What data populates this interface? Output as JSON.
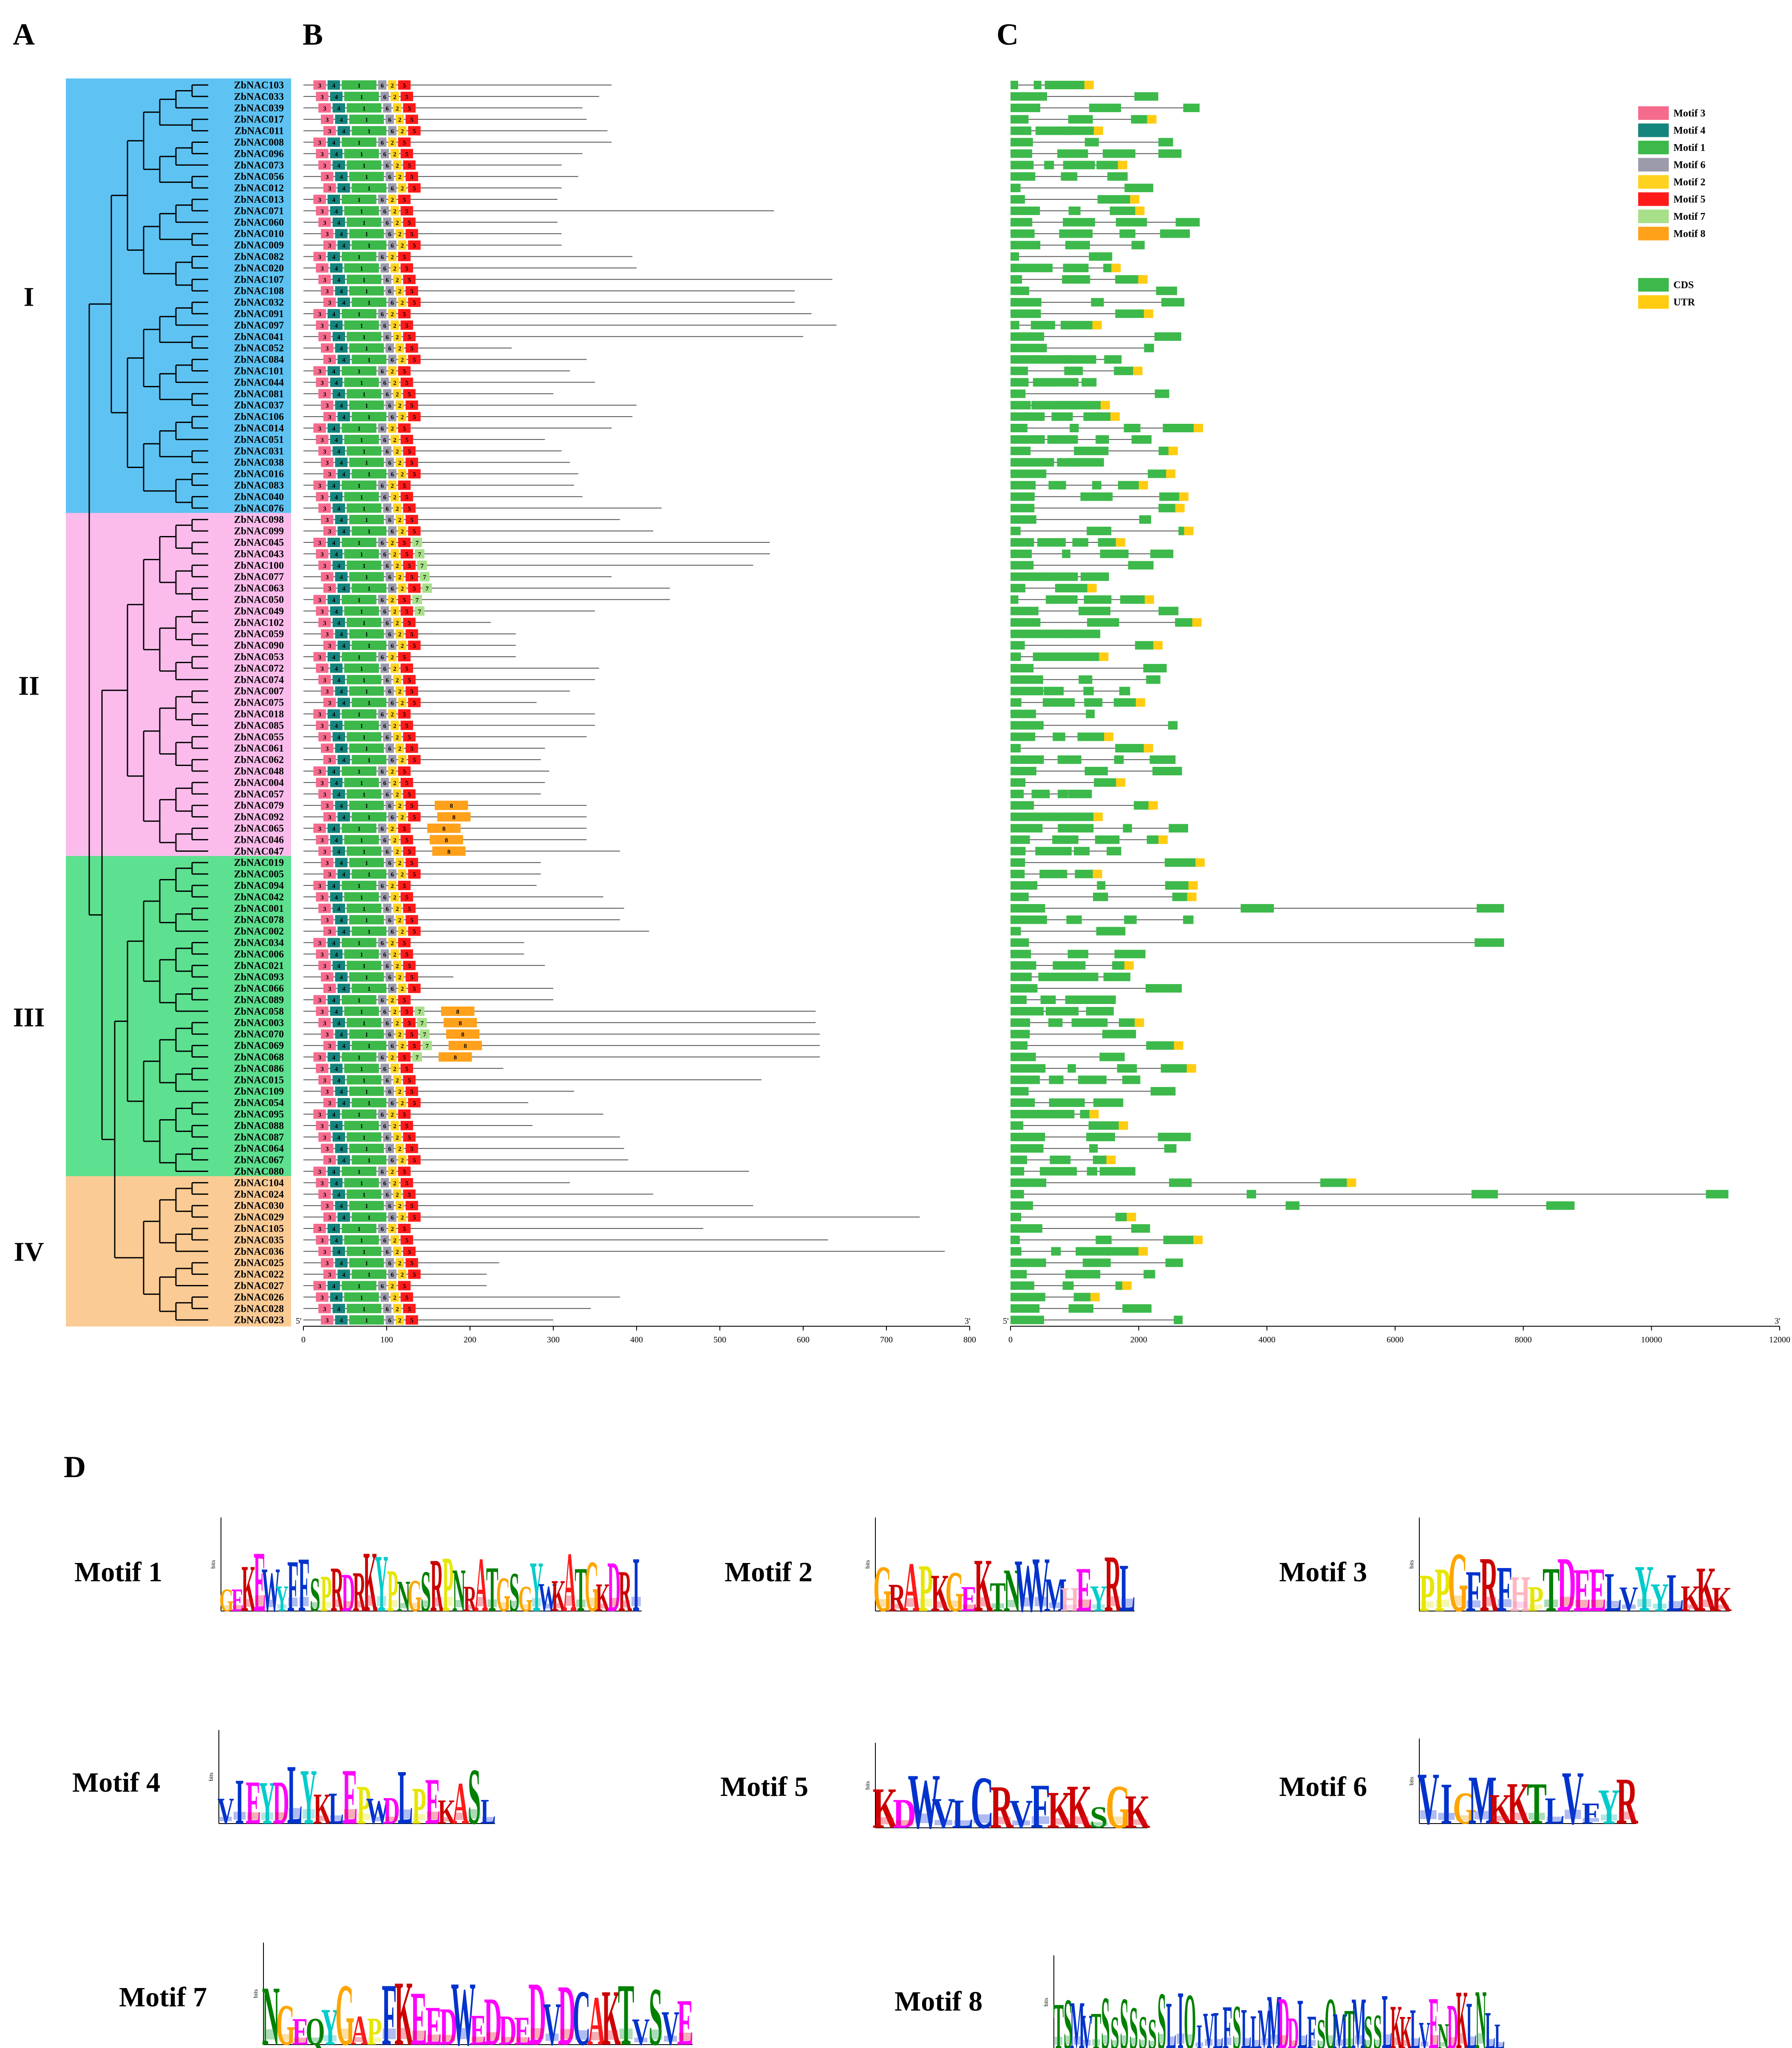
{
  "panels": {
    "a": "A",
    "b": "B",
    "c": "C",
    "d": "D"
  },
  "clades": [
    {
      "label": "I",
      "color": "#5ec3f2",
      "start": 0,
      "end": 37
    },
    {
      "label": "II",
      "color": "#fbbcec",
      "start": 38,
      "end": 67
    },
    {
      "label": "III",
      "color": "#5de08f",
      "start": 68,
      "end": 95
    },
    {
      "label": "IV",
      "color": "#fbcb95",
      "start": 96,
      "end": 108
    }
  ],
  "genes": [
    "ZbNAC103",
    "ZbNAC033",
    "ZbNAC039",
    "ZbNAC017",
    "ZbNAC011",
    "ZbNAC008",
    "ZbNAC096",
    "ZbNAC073",
    "ZbNAC056",
    "ZbNAC012",
    "ZbNAC013",
    "ZbNAC071",
    "ZbNAC060",
    "ZbNAC010",
    "ZbNAC009",
    "ZbNAC082",
    "ZbNAC020",
    "ZbNAC107",
    "ZbNAC108",
    "ZbNAC032",
    "ZbNAC091",
    "ZbNAC097",
    "ZbNAC041",
    "ZbNAC052",
    "ZbNAC084",
    "ZbNAC101",
    "ZbNAC044",
    "ZbNAC081",
    "ZbNAC037",
    "ZbNAC106",
    "ZbNAC014",
    "ZbNAC051",
    "ZbNAC031",
    "ZbNAC038",
    "ZbNAC016",
    "ZbNAC083",
    "ZbNAC040",
    "ZbNAC076",
    "ZbNAC098",
    "ZbNAC099",
    "ZbNAC045",
    "ZbNAC043",
    "ZbNAC100",
    "ZbNAC077",
    "ZbNAC063",
    "ZbNAC050",
    "ZbNAC049",
    "ZbNAC102",
    "ZbNAC059",
    "ZbNAC090",
    "ZbNAC053",
    "ZbNAC072",
    "ZbNAC074",
    "ZbNAC007",
    "ZbNAC075",
    "ZbNAC018",
    "ZbNAC085",
    "ZbNAC055",
    "ZbNAC061",
    "ZbNAC062",
    "ZbNAC048",
    "ZbNAC004",
    "ZbNAC057",
    "ZbNAC079",
    "ZbNAC092",
    "ZbNAC065",
    "ZbNAC046",
    "ZbNAC047",
    "ZbNAC019",
    "ZbNAC005",
    "ZbNAC094",
    "ZbNAC042",
    "ZbNAC001",
    "ZbNAC078",
    "ZbNAC002",
    "ZbNAC034",
    "ZbNAC006",
    "ZbNAC021",
    "ZbNAC093",
    "ZbNAC066",
    "ZbNAC089",
    "ZbNAC058",
    "ZbNAC003",
    "ZbNAC070",
    "ZbNAC069",
    "ZbNAC068",
    "ZbNAC086",
    "ZbNAC015",
    "ZbNAC109",
    "ZbNAC054",
    "ZbNAC095",
    "ZbNAC088",
    "ZbNAC087",
    "ZbNAC064",
    "ZbNAC067",
    "ZbNAC080",
    "ZbNAC104",
    "ZbNAC024",
    "ZbNAC030",
    "ZbNAC029",
    "ZbNAC105",
    "ZbNAC035",
    "ZbNAC036",
    "ZbNAC025",
    "ZbNAC022",
    "ZbNAC027",
    "ZbNAC026",
    "ZbNAC028",
    "ZbNAC023"
  ],
  "protein_lengths": [
    370,
    355,
    335,
    340,
    365,
    370,
    335,
    310,
    330,
    310,
    305,
    565,
    305,
    310,
    310,
    395,
    400,
    635,
    590,
    590,
    610,
    640,
    600,
    250,
    340,
    320,
    350,
    300,
    400,
    395,
    370,
    290,
    310,
    320,
    330,
    325,
    335,
    430,
    380,
    420,
    560,
    560,
    540,
    370,
    440,
    440,
    350,
    225,
    255,
    255,
    255,
    355,
    350,
    320,
    280,
    350,
    350,
    340,
    290,
    285,
    295,
    290,
    285,
    340,
    340,
    340,
    340,
    380,
    285,
    285,
    280,
    360,
    385,
    380,
    415,
    265,
    265,
    290,
    180,
    300,
    300,
    615,
    615,
    620,
    620,
    620,
    240,
    550,
    325,
    270,
    360,
    275,
    380,
    385,
    390,
    535,
    320,
    420,
    540,
    740,
    480,
    630,
    770,
    235,
    220,
    220,
    380,
    345,
    300
  ],
  "motif_order": [
    "3",
    "4",
    "1",
    "6",
    "2",
    "5",
    "7",
    "8"
  ],
  "legend": [
    {
      "label": "Motif 3",
      "color": "#f56b8d"
    },
    {
      "label": "Motif 4",
      "color": "#14857c"
    },
    {
      "label": "Motif 1",
      "color": "#3cb94a"
    },
    {
      "label": "Motif 6",
      "color": "#9b9bab"
    },
    {
      "label": "Motif 2",
      "color": "#ffd21f"
    },
    {
      "label": "Motif 5",
      "color": "#ff1a1a"
    },
    {
      "label": "Motif 7",
      "color": "#a8e08a"
    },
    {
      "label": "Motif 8",
      "color": "#ffa11a"
    },
    {
      "label": "CDS",
      "color": "#3cb94a"
    },
    {
      "label": "UTR",
      "color": "#ffcc11"
    }
  ],
  "axis_b": {
    "ticks": [
      "0",
      "100",
      "200",
      "300",
      "400",
      "500",
      "600",
      "700",
      "800"
    ],
    "start": "5'",
    "end": "3'"
  },
  "axis_c": {
    "ticks": [
      "0",
      "2000",
      "4000",
      "6000",
      "8000",
      "10000",
      "12000"
    ],
    "start": "5'",
    "end": "3'"
  },
  "motif_logos": [
    {
      "title": "Motif 1",
      "top": "GEKEWYFFSPRDRKYPNGSRPNRATGSGYWKATGKDR I",
      "axis_label": "bits"
    },
    {
      "title": "Motif 2",
      "top": "GRAPKGEKTNWVMHEYRL",
      "axis_label": "bits"
    },
    {
      "title": "Motif 3",
      "top": "PPGFRFHPTDEELVYYLKKK",
      "axis_label": "bits"
    },
    {
      "title": "Motif 4",
      "top": "VIEYDLYKLEPWDLPEKASL",
      "axis_label": "bits"
    },
    {
      "title": "Motif 5",
      "top": "KDWVLCRVFKKSGK",
      "axis_label": "bits"
    },
    {
      "title": "Motif 6",
      "top": "VIGMKKTLVFYR",
      "axis_label": "bits"
    },
    {
      "title": "Motif 7",
      "top": "NGEQYGAPFKEEDWEDDEDVDCAKTVSVE",
      "axis_label": "bits"
    },
    {
      "title": "Motif 8",
      "top": "TSMVTSSSSSSSLIQIVLFSLLMMDDLFSQMTMSSLKKLVENDKLNLL",
      "axis_label": "bits"
    }
  ]
}
